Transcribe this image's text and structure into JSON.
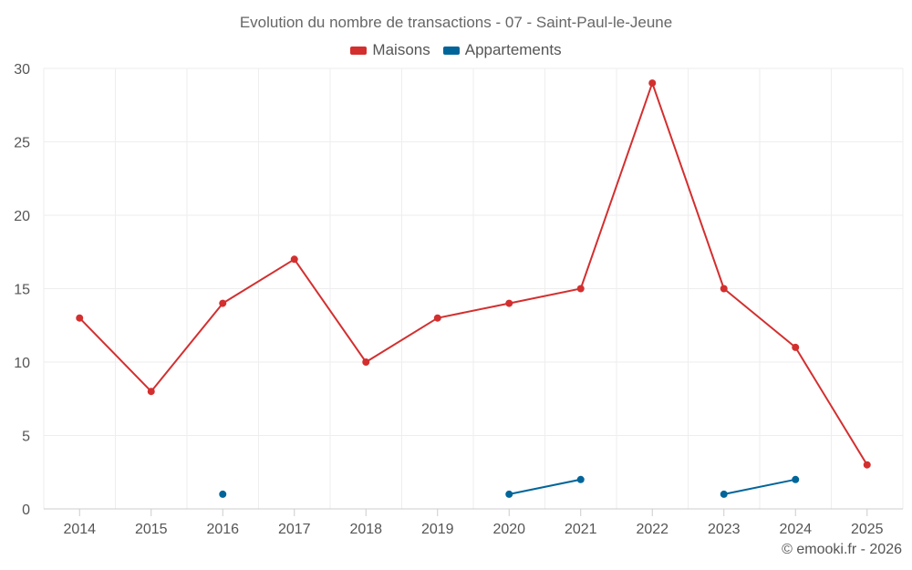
{
  "chart_data": {
    "type": "line",
    "title": "Evolution du nombre de transactions - 07 - Saint-Paul-le-Jeune",
    "categories": [
      "2014",
      "2015",
      "2016",
      "2017",
      "2018",
      "2019",
      "2020",
      "2021",
      "2022",
      "2023",
      "2024",
      "2025"
    ],
    "series": [
      {
        "name": "Maisons",
        "color": "#d32f2f",
        "values": [
          13,
          8,
          14,
          17,
          10,
          13,
          14,
          15,
          29,
          15,
          11,
          3
        ]
      },
      {
        "name": "Appartements",
        "color": "#01659a",
        "values": [
          null,
          null,
          1,
          null,
          null,
          null,
          1,
          2,
          null,
          1,
          2,
          null
        ]
      }
    ],
    "ylim": [
      0,
      30
    ],
    "yticks": [
      0,
      5,
      10,
      15,
      20,
      25,
      30
    ],
    "xlabel": "",
    "ylabel": "",
    "grid": true,
    "legend_position": "top-center"
  },
  "credit": "© emooki.fr - 2026"
}
